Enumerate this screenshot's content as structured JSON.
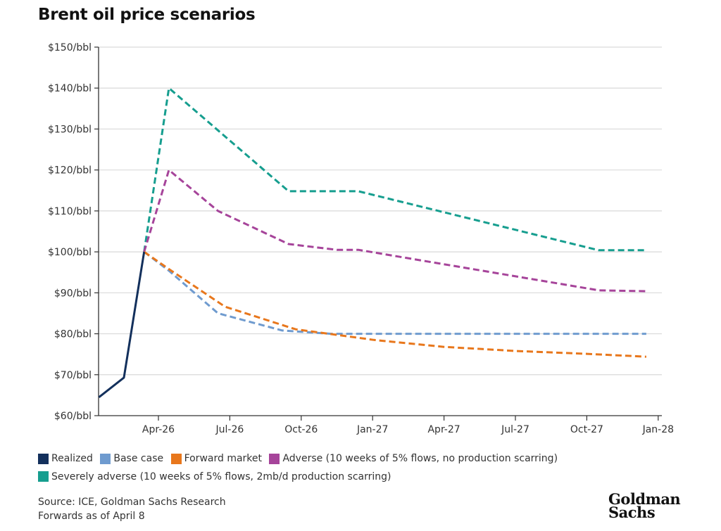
{
  "chart_data": {
    "type": "line",
    "title": "Brent oil price scenarios",
    "xlabel": "",
    "ylabel": "",
    "x_unit": "months since Jan-26",
    "xlim": [
      2.5,
      24
    ],
    "ylim": [
      60,
      150
    ],
    "y_ticks": [
      {
        "value": 150,
        "label": "$150/bbl"
      },
      {
        "value": 140,
        "label": "$140/bbl"
      },
      {
        "value": 130,
        "label": "$130/bbl"
      },
      {
        "value": 120,
        "label": "$120/bbl"
      },
      {
        "value": 110,
        "label": "$110/bbl"
      },
      {
        "value": 100,
        "label": "$100/bbl"
      },
      {
        "value": 90,
        "label": "$90/bbl"
      },
      {
        "value": 80,
        "label": "$80/bbl"
      },
      {
        "value": 70,
        "label": "$70/bbl"
      },
      {
        "value": 60,
        "label": "$60/bbl"
      }
    ],
    "x_ticks": [
      {
        "value": 3,
        "label": "Apr-26"
      },
      {
        "value": 6,
        "label": "Jul-26"
      },
      {
        "value": 9,
        "label": "Oct-26"
      },
      {
        "value": 12,
        "label": "Jan-27"
      },
      {
        "value": 15,
        "label": "Apr-27"
      },
      {
        "value": 18,
        "label": "Jul-27"
      },
      {
        "value": 21,
        "label": "Oct-27"
      },
      {
        "value": 24,
        "label": "Jan-28"
      }
    ],
    "grid": true,
    "legend_position": "bottom",
    "series": [
      {
        "name": "Realized",
        "color": "#13305c",
        "dashed": false,
        "x": [
          0.5,
          1.55,
          2.4
        ],
        "y": [
          64.5,
          69.3,
          100
        ]
      },
      {
        "name": "Base case",
        "color": "#6f9bcf",
        "dashed": true,
        "x": [
          2.4,
          3.44,
          5.5,
          8.2,
          10.25,
          14,
          18,
          23.5
        ],
        "y": [
          100,
          95.4,
          85,
          80.8,
          80,
          80,
          80,
          80
        ]
      },
      {
        "name": "Forward market",
        "color": "#e8771c",
        "dashed": true,
        "x": [
          2.4,
          3.44,
          5.8,
          8.77,
          12.05,
          15,
          18,
          21,
          23.5
        ],
        "y": [
          100,
          95.8,
          86.6,
          81.1,
          78.5,
          76.8,
          75.8,
          75.1,
          74.4
        ]
      },
      {
        "name": "Adverse (10 weeks of 5% flows, no production scarring)",
        "color": "#a6449a",
        "dashed": true,
        "x": [
          2.4,
          3.44,
          5.5,
          8.47,
          10.5,
          11.4,
          21.5,
          23.5
        ],
        "y": [
          100,
          120,
          110,
          101.9,
          100.5,
          100.5,
          90.6,
          90.4
        ]
      },
      {
        "name": "Severely adverse (10 weeks of 5% flows, 2mb/d production scarring)",
        "color": "#169e8f",
        "dashed": true,
        "x": [
          2.4,
          3.44,
          8.47,
          11.4,
          21.5,
          23.5
        ],
        "y": [
          100,
          140,
          114.8,
          114.8,
          100.4,
          100.4
        ]
      }
    ]
  },
  "legend": [
    {
      "label": "Realized",
      "color": "#13305c"
    },
    {
      "label": "Base case",
      "color": "#6f9bcf"
    },
    {
      "label": "Forward market",
      "color": "#e8771c"
    },
    {
      "label": "Adverse (10 weeks of 5% flows, no production scarring)",
      "color": "#a6449a"
    },
    {
      "label": "Severely adverse (10 weeks of 5% flows, 2mb/d production scarring)",
      "color": "#169e8f"
    }
  ],
  "source": {
    "line1": "Source: ICE, Goldman Sachs Research",
    "line2": "Forwards as of April 8"
  },
  "logo": {
    "line1": "Goldman",
    "line2": "Sachs"
  }
}
